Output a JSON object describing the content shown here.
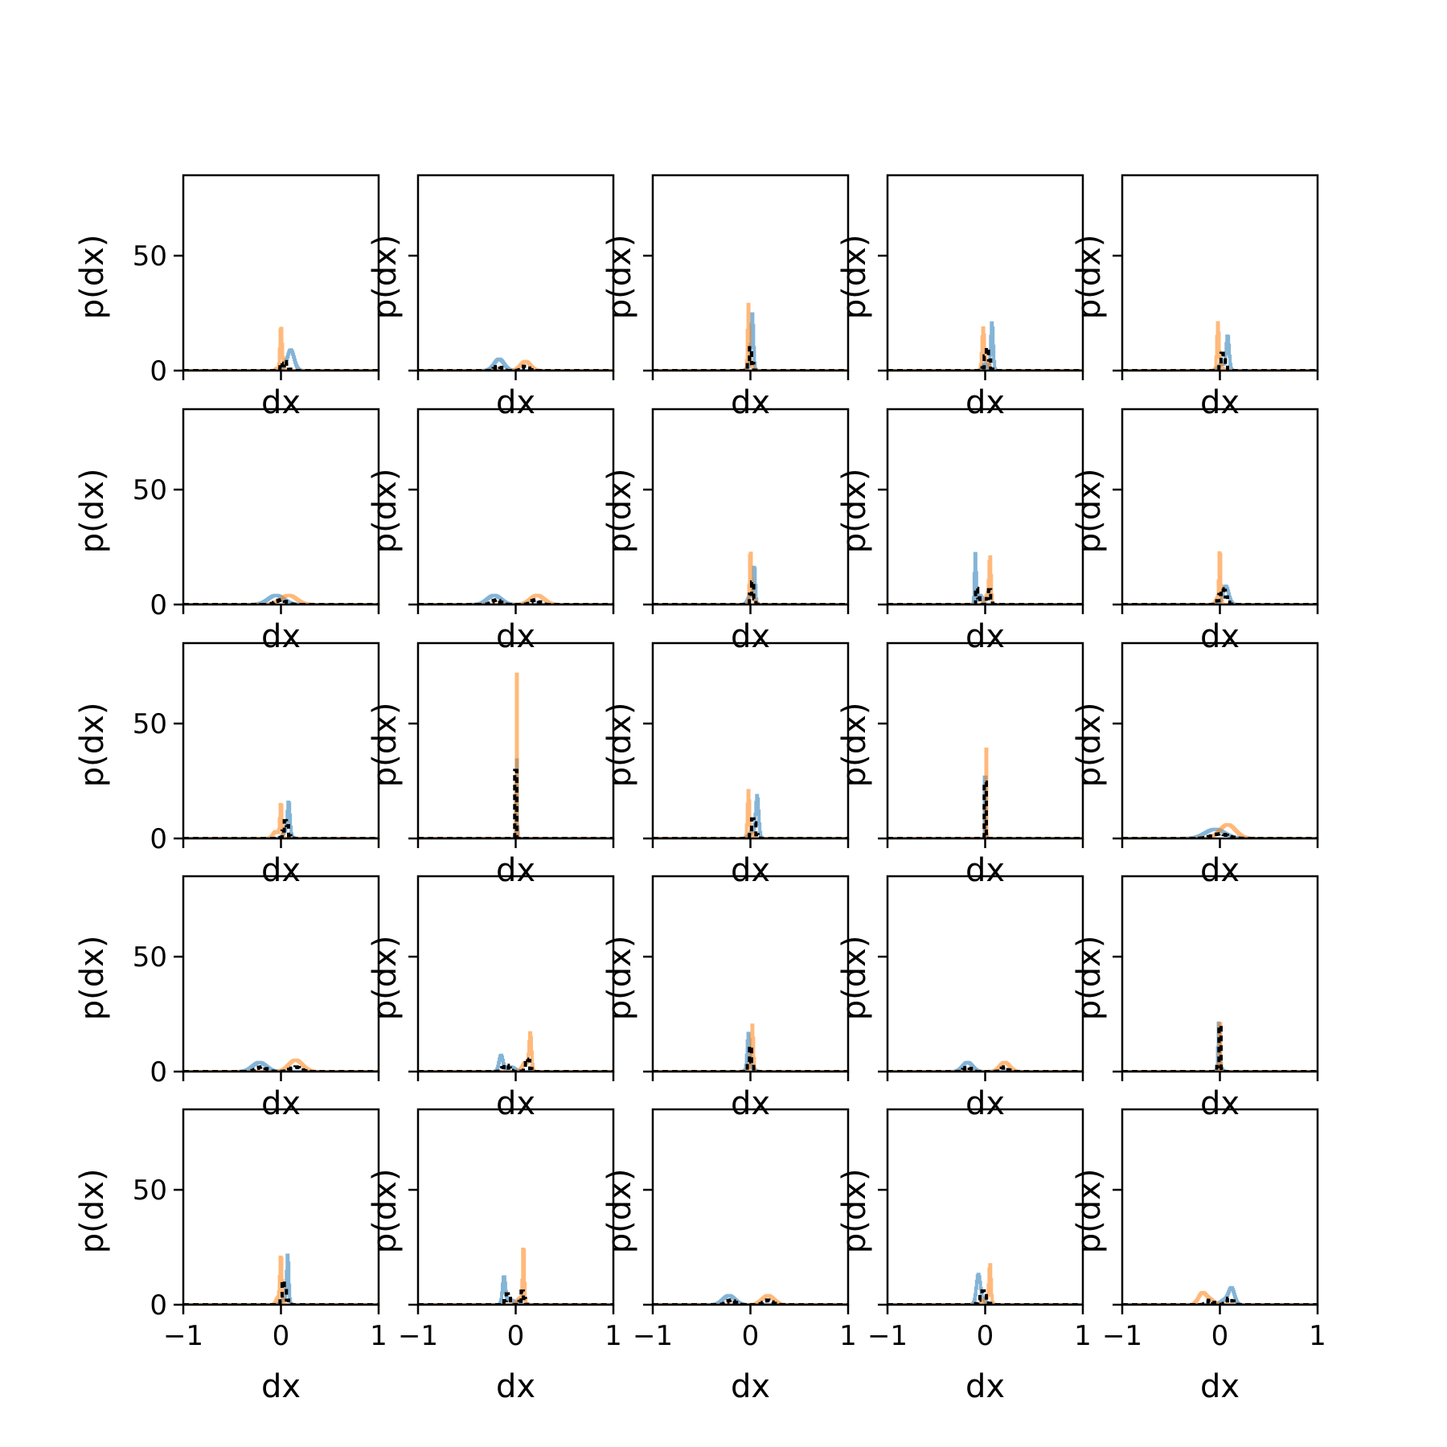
{
  "chart_data": {
    "type": "line",
    "layout": {
      "rows": 5,
      "cols": 5
    },
    "xlabel": "dx",
    "ylabel": "p(dx)",
    "xlim": [
      -1,
      1
    ],
    "ylim": [
      0,
      85
    ],
    "xticks": [
      -1,
      0,
      1
    ],
    "yticks": [
      0,
      50
    ],
    "xtick_labels": [
      "−1",
      "0",
      "1"
    ],
    "ytick_labels": [
      "0",
      "50"
    ],
    "grid": false,
    "legend": "none",
    "series_styles": [
      {
        "color": "#1f77b4",
        "alpha": 0.55,
        "dash": "solid"
      },
      {
        "color": "#ff7f0e",
        "alpha": 0.55,
        "dash": "solid"
      },
      {
        "color": "#000000",
        "alpha": 1.0,
        "dash": "dashed"
      }
    ],
    "panels": [
      {
        "row": 1,
        "col": 1,
        "blue": [
          [
            0.04,
            0.012,
            1
          ],
          [
            0.1,
            0.035,
            9
          ]
        ],
        "orange": [
          [
            -0.04,
            0.012,
            1
          ],
          [
            0.0,
            0.01,
            19
          ],
          [
            0.02,
            0.01,
            3
          ]
        ],
        "black": [
          [
            0.05,
            0.02,
            4
          ],
          [
            0.0,
            0.012,
            3
          ]
        ]
      },
      {
        "row": 1,
        "col": 2,
        "blue": [
          [
            -0.17,
            0.05,
            5
          ]
        ],
        "orange": [
          [
            0.1,
            0.05,
            4
          ]
        ],
        "black": [
          [
            -0.18,
            0.03,
            2
          ],
          [
            0.1,
            0.03,
            2
          ]
        ]
      },
      {
        "row": 1,
        "col": 3,
        "blue": [
          [
            0.02,
            0.012,
            24
          ],
          [
            -0.01,
            0.02,
            2
          ]
        ],
        "orange": [
          [
            -0.02,
            0.008,
            27
          ],
          [
            0.0,
            0.02,
            3
          ]
        ],
        "black": [
          [
            0.0,
            0.015,
            10
          ]
        ]
      },
      {
        "row": 1,
        "col": 4,
        "blue": [
          [
            0.07,
            0.012,
            21
          ],
          [
            0.0,
            0.02,
            3
          ]
        ],
        "orange": [
          [
            -0.02,
            0.012,
            18
          ],
          [
            0.02,
            0.02,
            4
          ]
        ],
        "black": [
          [
            0.02,
            0.02,
            10
          ]
        ]
      },
      {
        "row": 1,
        "col": 5,
        "blue": [
          [
            0.08,
            0.015,
            15
          ],
          [
            0.02,
            0.03,
            3
          ]
        ],
        "orange": [
          [
            -0.02,
            0.01,
            19
          ],
          [
            0.0,
            0.02,
            3
          ]
        ],
        "black": [
          [
            0.03,
            0.02,
            8
          ]
        ]
      },
      {
        "row": 2,
        "col": 1,
        "blue": [
          [
            -0.05,
            0.08,
            4
          ]
        ],
        "orange": [
          [
            0.08,
            0.08,
            4
          ]
        ],
        "black": [
          [
            0.0,
            0.05,
            2
          ]
        ]
      },
      {
        "row": 2,
        "col": 2,
        "blue": [
          [
            -0.22,
            0.07,
            4
          ]
        ],
        "orange": [
          [
            0.22,
            0.07,
            4
          ]
        ],
        "black": [
          [
            -0.2,
            0.04,
            2
          ],
          [
            0.2,
            0.04,
            2
          ]
        ]
      },
      {
        "row": 2,
        "col": 3,
        "blue": [
          [
            0.04,
            0.01,
            16
          ],
          [
            0.0,
            0.025,
            4
          ]
        ],
        "orange": [
          [
            0.0,
            0.008,
            22
          ],
          [
            0.02,
            0.02,
            4
          ]
        ],
        "black": [
          [
            0.02,
            0.015,
            10
          ]
        ]
      },
      {
        "row": 2,
        "col": 4,
        "blue": [
          [
            -0.1,
            0.008,
            22
          ],
          [
            -0.05,
            0.02,
            4
          ]
        ],
        "orange": [
          [
            0.05,
            0.01,
            20
          ],
          [
            0.02,
            0.02,
            4
          ]
        ],
        "black": [
          [
            -0.08,
            0.01,
            9
          ],
          [
            0.04,
            0.012,
            7
          ]
        ]
      },
      {
        "row": 2,
        "col": 5,
        "blue": [
          [
            0.06,
            0.03,
            8
          ]
        ],
        "orange": [
          [
            0.0,
            0.008,
            23
          ],
          [
            -0.02,
            0.02,
            3
          ]
        ],
        "black": [
          [
            0.03,
            0.03,
            7
          ]
        ]
      },
      {
        "row": 3,
        "col": 1,
        "blue": [
          [
            0.08,
            0.012,
            13
          ],
          [
            0.06,
            0.03,
            4
          ]
        ],
        "orange": [
          [
            0.0,
            0.01,
            15
          ],
          [
            -0.05,
            0.03,
            3
          ]
        ],
        "black": [
          [
            0.05,
            0.02,
            8
          ]
        ]
      },
      {
        "row": 3,
        "col": 2,
        "blue": [
          [
            0.01,
            0.005,
            37
          ]
        ],
        "orange": [
          [
            0.01,
            0.004,
            81
          ]
        ],
        "black": [
          [
            0.0,
            0.006,
            30
          ]
        ]
      },
      {
        "row": 3,
        "col": 3,
        "blue": [
          [
            0.07,
            0.015,
            18
          ],
          [
            0.02,
            0.03,
            3
          ]
        ],
        "orange": [
          [
            -0.02,
            0.01,
            19
          ],
          [
            0.0,
            0.02,
            3
          ]
        ],
        "black": [
          [
            0.03,
            0.02,
            9
          ]
        ]
      },
      {
        "row": 3,
        "col": 4,
        "blue": [
          [
            0.0,
            0.004,
            44
          ]
        ],
        "orange": [
          [
            0.01,
            0.004,
            44
          ]
        ],
        "black": [
          [
            0.0,
            0.005,
            25
          ]
        ]
      },
      {
        "row": 3,
        "col": 5,
        "blue": [
          [
            -0.05,
            0.1,
            4
          ]
        ],
        "orange": [
          [
            0.08,
            0.08,
            6
          ]
        ],
        "black": [
          [
            0.0,
            0.08,
            2
          ]
        ]
      },
      {
        "row": 4,
        "col": 1,
        "blue": [
          [
            -0.22,
            0.07,
            4
          ]
        ],
        "orange": [
          [
            0.15,
            0.07,
            5
          ]
        ],
        "black": [
          [
            -0.2,
            0.05,
            2
          ],
          [
            0.15,
            0.05,
            2
          ]
        ]
      },
      {
        "row": 4,
        "col": 2,
        "blue": [
          [
            -0.15,
            0.02,
            7
          ],
          [
            -0.05,
            0.04,
            2
          ]
        ],
        "orange": [
          [
            0.15,
            0.012,
            16
          ],
          [
            0.1,
            0.03,
            4
          ]
        ],
        "black": [
          [
            -0.1,
            0.03,
            3
          ],
          [
            0.12,
            0.02,
            6
          ]
        ]
      },
      {
        "row": 4,
        "col": 3,
        "blue": [
          [
            -0.02,
            0.012,
            15
          ],
          [
            0.0,
            0.03,
            2
          ]
        ],
        "orange": [
          [
            0.02,
            0.01,
            19
          ],
          [
            0.0,
            0.02,
            2
          ]
        ],
        "black": [
          [
            0.0,
            0.015,
            11
          ]
        ]
      },
      {
        "row": 4,
        "col": 4,
        "blue": [
          [
            -0.18,
            0.05,
            4
          ]
        ],
        "orange": [
          [
            0.2,
            0.05,
            4
          ]
        ],
        "black": [
          [
            -0.18,
            0.03,
            2
          ],
          [
            0.2,
            0.03,
            2
          ]
        ]
      },
      {
        "row": 4,
        "col": 5,
        "blue": [
          [
            -0.01,
            0.008,
            20
          ],
          [
            0.0,
            0.02,
            2
          ]
        ],
        "orange": [
          [
            0.0,
            0.006,
            26
          ]
        ],
        "black": [
          [
            0.0,
            0.01,
            20
          ]
        ]
      },
      {
        "row": 5,
        "col": 1,
        "blue": [
          [
            0.07,
            0.01,
            20
          ],
          [
            0.04,
            0.03,
            3
          ]
        ],
        "orange": [
          [
            0.0,
            0.01,
            21
          ],
          [
            -0.03,
            0.02,
            3
          ]
        ],
        "black": [
          [
            0.03,
            0.02,
            11
          ]
        ]
      },
      {
        "row": 5,
        "col": 2,
        "blue": [
          [
            -0.12,
            0.015,
            12
          ],
          [
            -0.05,
            0.04,
            2
          ]
        ],
        "orange": [
          [
            0.08,
            0.008,
            25
          ],
          [
            0.05,
            0.03,
            3
          ]
        ],
        "black": [
          [
            -0.08,
            0.02,
            5
          ],
          [
            0.07,
            0.015,
            6
          ]
        ]
      },
      {
        "row": 5,
        "col": 3,
        "blue": [
          [
            -0.22,
            0.06,
            4
          ]
        ],
        "orange": [
          [
            0.18,
            0.06,
            4
          ]
        ],
        "black": [
          [
            -0.2,
            0.04,
            2
          ],
          [
            0.18,
            0.04,
            2
          ]
        ]
      },
      {
        "row": 5,
        "col": 4,
        "blue": [
          [
            -0.07,
            0.02,
            12
          ],
          [
            -0.03,
            0.04,
            2
          ]
        ],
        "orange": [
          [
            0.05,
            0.01,
            16
          ],
          [
            0.02,
            0.03,
            3
          ]
        ],
        "black": [
          [
            -0.02,
            0.03,
            6
          ]
        ]
      },
      {
        "row": 5,
        "col": 5,
        "blue": [
          [
            0.12,
            0.03,
            7
          ],
          [
            0.05,
            0.04,
            2
          ]
        ],
        "orange": [
          [
            -0.18,
            0.04,
            5
          ],
          [
            -0.1,
            0.04,
            2
          ]
        ],
        "black": [
          [
            -0.1,
            0.03,
            2
          ],
          [
            0.1,
            0.03,
            3
          ]
        ]
      }
    ]
  }
}
